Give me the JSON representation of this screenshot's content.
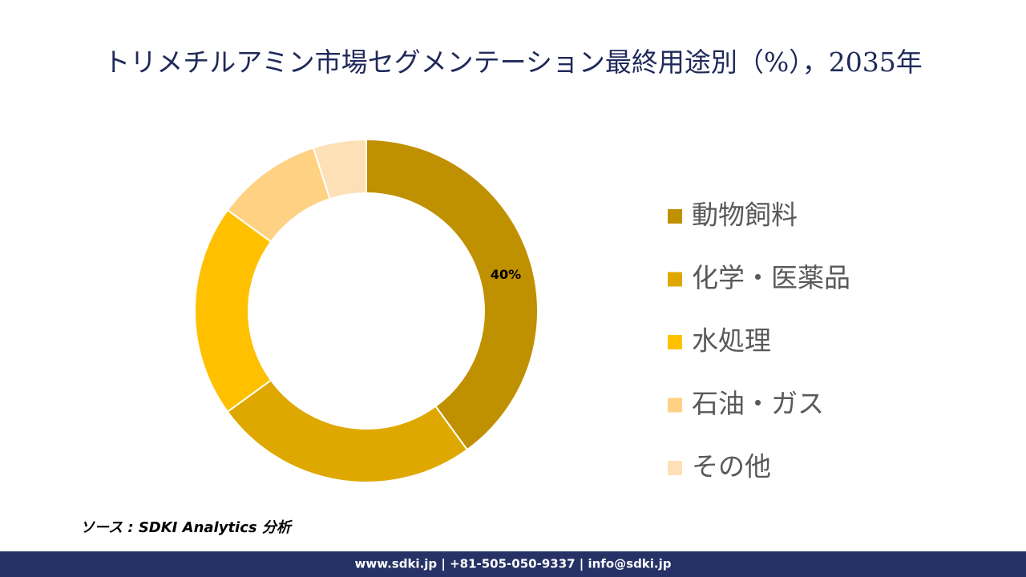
{
  "chart_data": {
    "type": "donut",
    "title": "トリメチルアミン市場セグメンテーション最終用途別（%），2035年",
    "categories": [
      "動物飼料",
      "化学・医薬品",
      "水処理",
      "石油・ガス",
      "その他"
    ],
    "values": [
      40,
      25,
      20,
      10,
      5
    ],
    "value_labels": [
      "40%",
      null,
      null,
      null,
      null
    ],
    "colors": [
      "#bf9000",
      "#dfa800",
      "#ffc000",
      "#ffd183",
      "#fde0b6"
    ],
    "legend": "right"
  },
  "source": "ソース : SDKI Analytics 分析",
  "footer": "www.sdki.jp | +81-505-050-9337 | info@sdki.jp"
}
